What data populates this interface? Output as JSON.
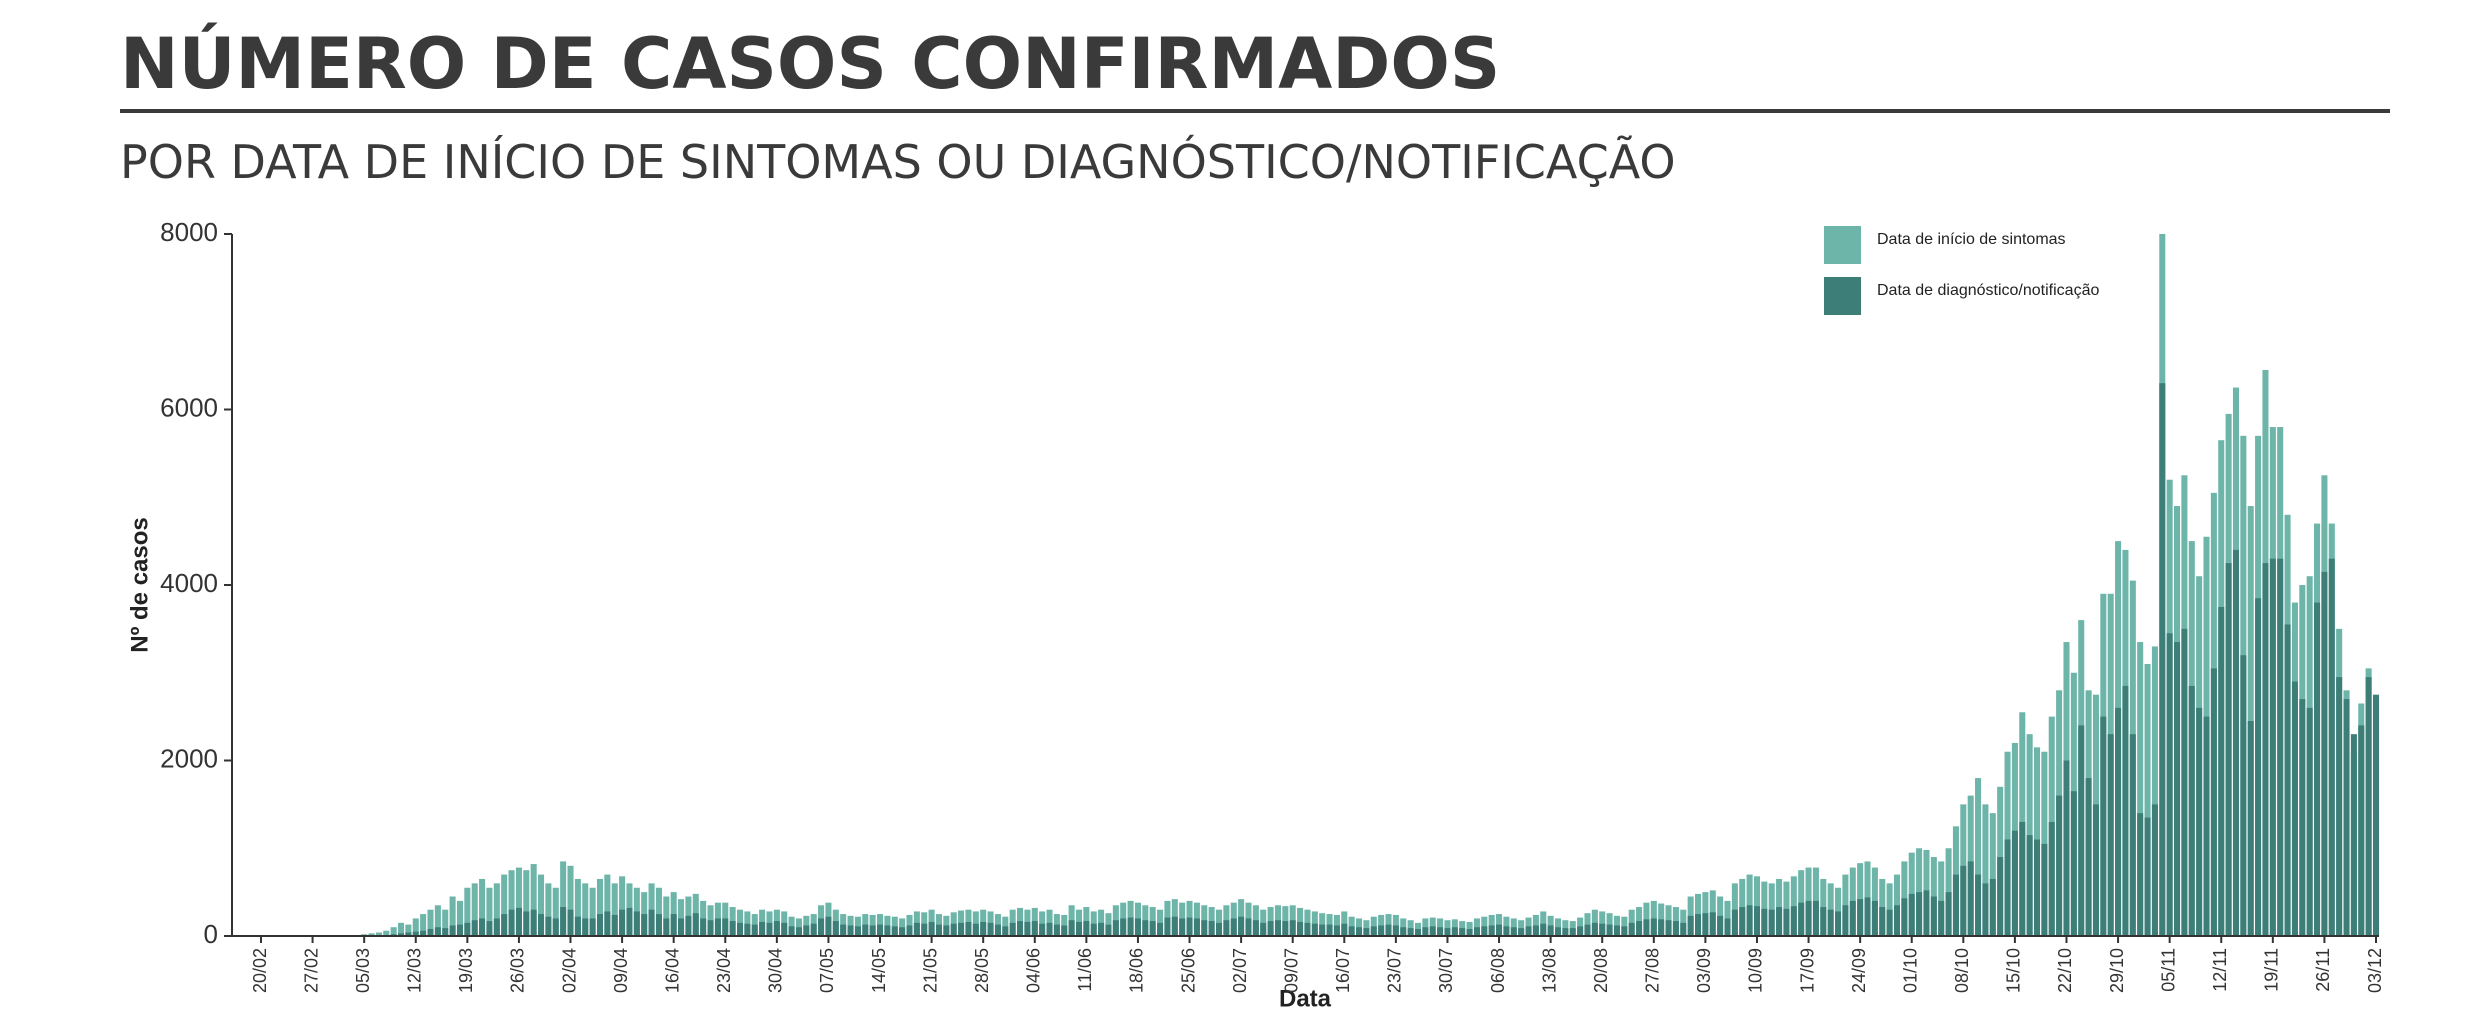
{
  "chart_data": {
    "type": "bar",
    "title": "NÚMERO DE CASOS CONFIRMADOS",
    "subtitle": "POR DATA DE INÍCIO DE SINTOMAS OU DIAGNÓSTICO/NOTIFICAÇÃO",
    "x_label": "Data",
    "y_label": "Nº de casos",
    "ylim": [
      0,
      8000
    ],
    "yticks": [
      0,
      2000,
      4000,
      6000,
      8000
    ],
    "grid": false,
    "legend_position": "top-right",
    "categories": [
      "20/02",
      null,
      null,
      null,
      null,
      null,
      null,
      "27/02",
      null,
      null,
      null,
      null,
      null,
      null,
      "05/03",
      null,
      null,
      null,
      null,
      null,
      null,
      "12/03",
      null,
      null,
      null,
      null,
      null,
      null,
      "19/03",
      null,
      null,
      null,
      null,
      null,
      null,
      "26/03",
      null,
      null,
      null,
      null,
      null,
      null,
      "02/04",
      null,
      null,
      null,
      null,
      null,
      null,
      "09/04",
      null,
      null,
      null,
      null,
      null,
      null,
      "16/04",
      null,
      null,
      null,
      null,
      null,
      null,
      "23/04",
      null,
      null,
      null,
      null,
      null,
      null,
      "30/04",
      null,
      null,
      null,
      null,
      null,
      null,
      "07/05",
      null,
      null,
      null,
      null,
      null,
      null,
      "14/05",
      null,
      null,
      null,
      null,
      null,
      null,
      "21/05",
      null,
      null,
      null,
      null,
      null,
      null,
      "28/05",
      null,
      null,
      null,
      null,
      null,
      null,
      "04/06",
      null,
      null,
      null,
      null,
      null,
      null,
      "11/06",
      null,
      null,
      null,
      null,
      null,
      null,
      "18/06",
      null,
      null,
      null,
      null,
      null,
      null,
      "25/06",
      null,
      null,
      null,
      null,
      null,
      null,
      "02/07",
      null,
      null,
      null,
      null,
      null,
      null,
      "09/07",
      null,
      null,
      null,
      null,
      null,
      null,
      "16/07",
      null,
      null,
      null,
      null,
      null,
      null,
      "23/07",
      null,
      null,
      null,
      null,
      null,
      null,
      "30/07",
      null,
      null,
      null,
      null,
      null,
      null,
      "06/08",
      null,
      null,
      null,
      null,
      null,
      null,
      "13/08",
      null,
      null,
      null,
      null,
      null,
      null,
      "20/08",
      null,
      null,
      null,
      null,
      null,
      null,
      "27/08",
      null,
      null,
      null,
      null,
      null,
      null,
      "03/09",
      null,
      null,
      null,
      null,
      null,
      null,
      "10/09",
      null,
      null,
      null,
      null,
      null,
      null,
      "17/09",
      null,
      null,
      null,
      null,
      null,
      null,
      "24/09",
      null,
      null,
      null,
      null,
      null,
      null,
      "01/10",
      null,
      null,
      null,
      null,
      null,
      null,
      "08/10",
      null,
      null,
      null,
      null,
      null,
      null,
      "15/10",
      null,
      null,
      null,
      null,
      null,
      null,
      "22/10",
      null,
      null,
      null,
      null,
      null,
      null,
      "29/10",
      null,
      null,
      null,
      null,
      null,
      null,
      "05/11",
      null,
      null,
      null,
      null,
      null,
      null,
      "12/11",
      null,
      null,
      null,
      null,
      null,
      null,
      "19/11",
      null,
      null,
      null,
      null,
      null,
      null,
      "26/11",
      null,
      null,
      null,
      null,
      null,
      null,
      "03/12"
    ],
    "series": [
      {
        "name": "Data de início de sintomas",
        "color": "#6db5a9",
        "values": [
          0,
          0,
          0,
          0,
          0,
          0,
          0,
          0,
          0,
          0,
          0,
          0,
          0,
          0,
          20,
          30,
          40,
          60,
          100,
          150,
          130,
          200,
          250,
          300,
          350,
          300,
          450,
          400,
          550,
          600,
          650,
          550,
          600,
          700,
          750,
          780,
          750,
          820,
          700,
          600,
          550,
          850,
          800,
          650,
          600,
          550,
          650,
          700,
          600,
          680,
          600,
          550,
          500,
          600,
          550,
          450,
          500,
          420,
          450,
          480,
          400,
          350,
          380,
          380,
          330,
          300,
          280,
          250,
          300,
          280,
          300,
          280,
          220,
          200,
          230,
          250,
          350,
          380,
          300,
          250,
          230,
          220,
          250,
          240,
          250,
          230,
          220,
          200,
          240,
          280,
          270,
          300,
          250,
          230,
          270,
          290,
          300,
          280,
          300,
          280,
          250,
          220,
          300,
          320,
          300,
          320,
          280,
          300,
          250,
          240,
          350,
          300,
          330,
          280,
          300,
          260,
          350,
          380,
          400,
          380,
          350,
          330,
          300,
          400,
          420,
          380,
          400,
          380,
          350,
          330,
          300,
          350,
          380,
          420,
          380,
          350,
          300,
          330,
          350,
          340,
          350,
          320,
          300,
          280,
          260,
          250,
          240,
          280,
          220,
          200,
          180,
          220,
          240,
          250,
          240,
          200,
          180,
          150,
          200,
          210,
          200,
          180,
          190,
          170,
          160,
          200,
          220,
          240,
          250,
          220,
          200,
          180,
          210,
          240,
          280,
          230,
          200,
          180,
          170,
          210,
          260,
          300,
          280,
          260,
          230,
          220,
          300,
          330,
          380,
          400,
          370,
          350,
          330,
          300,
          450,
          480,
          500,
          520,
          450,
          400,
          600,
          650,
          700,
          680,
          620,
          600,
          650,
          620,
          680,
          750,
          780,
          780,
          650,
          600,
          550,
          700,
          780,
          830,
          850,
          780,
          650,
          600,
          700,
          850,
          950,
          1000,
          980,
          900,
          850,
          1000,
          1250,
          1500,
          1600,
          1800,
          1500,
          1400,
          1700,
          2100,
          2200,
          2550,
          2300,
          2150,
          2100,
          2500,
          2800,
          3350,
          3000,
          3600,
          2800,
          2750,
          3900,
          3900,
          4500,
          4400,
          4050,
          3350,
          3100,
          3300,
          8000,
          5200,
          4900,
          5250,
          4500,
          4100,
          4550,
          5050,
          5650,
          5950,
          6250,
          5700,
          4900,
          5700,
          6450,
          5800,
          5800,
          4800,
          3800,
          4000,
          4100,
          4700,
          5250,
          4700,
          3500,
          2800,
          2100,
          2650,
          3050,
          2700
        ]
      },
      {
        "name": "Data de diagnóstico/notificação",
        "color": "#3d7f78",
        "values": [
          0,
          0,
          0,
          0,
          0,
          0,
          0,
          0,
          0,
          0,
          0,
          0,
          0,
          0,
          0,
          0,
          5,
          10,
          20,
          30,
          40,
          50,
          60,
          80,
          100,
          90,
          120,
          130,
          150,
          180,
          200,
          170,
          200,
          250,
          300,
          320,
          280,
          300,
          250,
          220,
          200,
          330,
          300,
          220,
          200,
          200,
          250,
          280,
          240,
          300,
          320,
          280,
          250,
          300,
          250,
          200,
          250,
          200,
          230,
          260,
          200,
          180,
          200,
          200,
          170,
          150,
          140,
          130,
          160,
          150,
          170,
          150,
          110,
          100,
          120,
          140,
          200,
          220,
          170,
          130,
          120,
          110,
          130,
          120,
          130,
          120,
          110,
          100,
          120,
          150,
          140,
          160,
          130,
          120,
          140,
          150,
          160,
          140,
          160,
          150,
          130,
          110,
          150,
          170,
          160,
          170,
          140,
          150,
          130,
          120,
          180,
          160,
          170,
          140,
          150,
          130,
          180,
          200,
          210,
          200,
          180,
          170,
          150,
          210,
          220,
          200,
          210,
          200,
          180,
          170,
          150,
          180,
          200,
          220,
          200,
          180,
          150,
          170,
          180,
          170,
          180,
          160,
          150,
          140,
          130,
          130,
          120,
          140,
          110,
          100,
          90,
          110,
          120,
          130,
          120,
          100,
          90,
          80,
          100,
          110,
          100,
          90,
          100,
          90,
          80,
          100,
          110,
          120,
          130,
          110,
          100,
          90,
          110,
          120,
          140,
          120,
          100,
          90,
          90,
          110,
          130,
          150,
          140,
          130,
          120,
          110,
          150,
          170,
          190,
          200,
          190,
          180,
          170,
          150,
          230,
          250,
          260,
          270,
          230,
          200,
          300,
          330,
          350,
          340,
          310,
          300,
          330,
          310,
          340,
          380,
          400,
          400,
          330,
          300,
          280,
          350,
          400,
          420,
          440,
          400,
          330,
          300,
          350,
          430,
          480,
          500,
          520,
          450,
          400,
          500,
          700,
          800,
          850,
          700,
          600,
          650,
          900,
          1100,
          1200,
          1300,
          1150,
          1100,
          1050,
          1300,
          1600,
          2000,
          1650,
          2400,
          1800,
          1500,
          2500,
          2300,
          2600,
          2850,
          2300,
          1400,
          1350,
          1500,
          6300,
          3450,
          3350,
          3500,
          2850,
          2600,
          2500,
          3050,
          3750,
          4250,
          4400,
          3200,
          2450,
          3850,
          4250,
          4300,
          4300,
          3550,
          2900,
          2700,
          2600,
          3800,
          4150,
          4300,
          2950,
          2700,
          2300,
          2400,
          2950,
          2750
        ]
      }
    ]
  }
}
